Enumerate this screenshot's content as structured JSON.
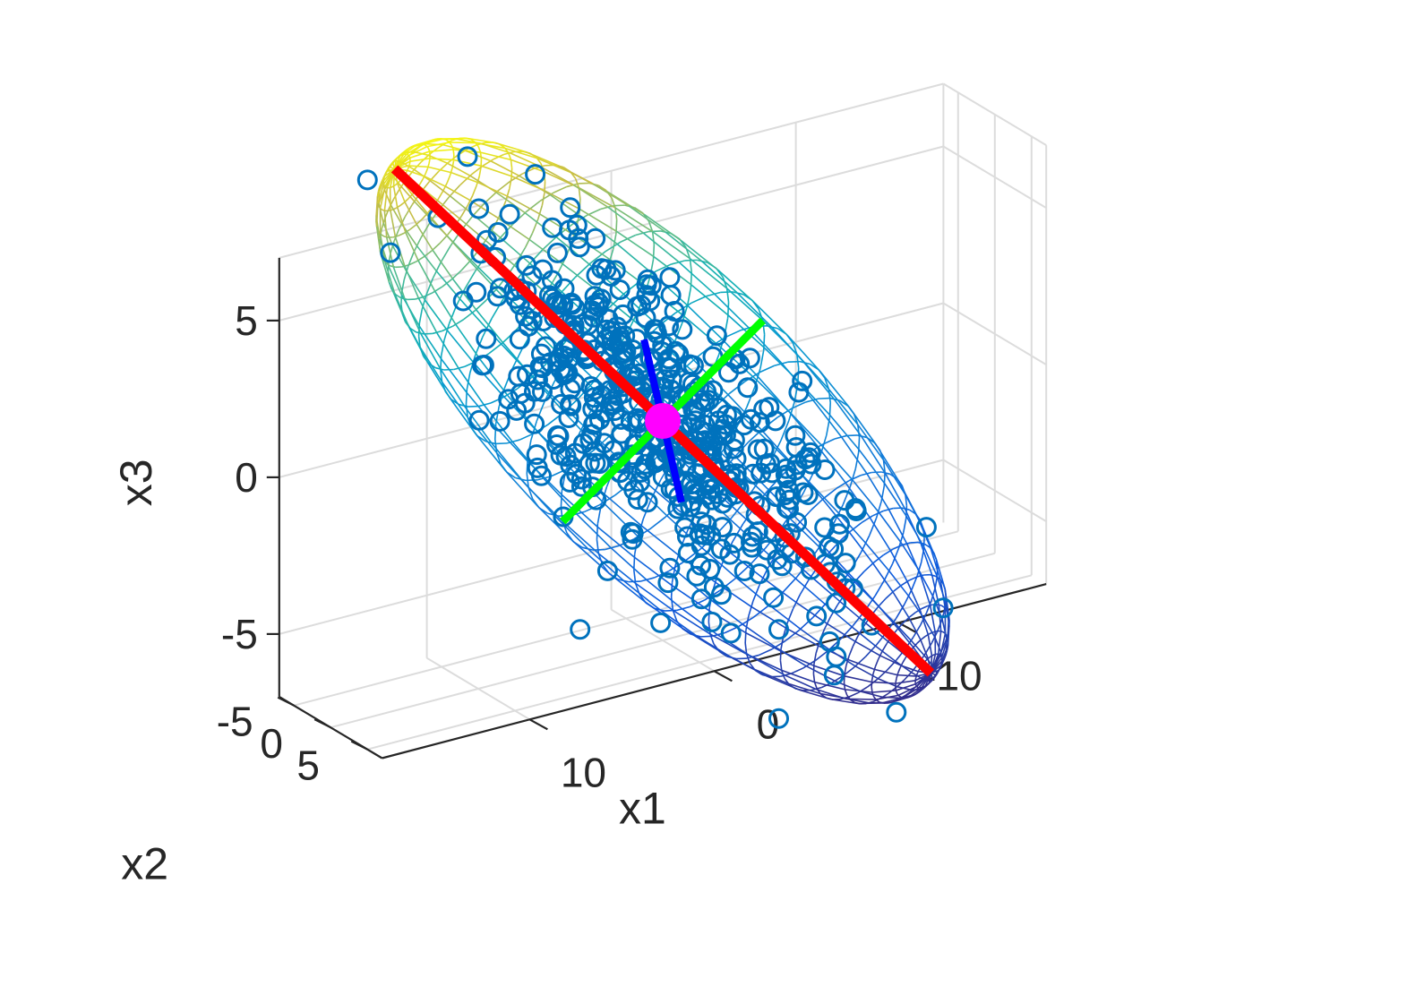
{
  "chart_data": {
    "type": "scatter",
    "projection": "3d",
    "title": "",
    "axes": {
      "x": {
        "label": "x1",
        "ticks": [
          -10,
          0,
          10
        ],
        "tick_labels": [
          "-10",
          "0",
          "10"
        ],
        "range": [
          -18,
          18
        ]
      },
      "y": {
        "label": "x2",
        "ticks": [
          -5,
          0,
          5
        ],
        "tick_labels": [
          "-5",
          "0",
          "5"
        ],
        "range": [
          -7,
          7
        ]
      },
      "z": {
        "label": "x3",
        "ticks": [
          -5,
          0,
          5
        ],
        "tick_labels": [
          "-5",
          "0",
          "5"
        ],
        "range": [
          -7,
          7
        ]
      }
    },
    "grid": true,
    "colors": {
      "points": "#0072bd",
      "principal_axis_1": "#ff0000",
      "principal_axis_2": "#00ff00",
      "principal_axis_3": "#0000ff",
      "center": "#ff00ff",
      "surface_colormap": "parula"
    },
    "ellipsoid": {
      "center": [
        0,
        0,
        0
      ],
      "semi_axes": [
        20,
        7,
        3
      ],
      "principal_axis_1": [
        0.8,
        0.2,
        0.55
      ],
      "principal_axis_2": [
        -0.4,
        0.6,
        0.4
      ],
      "principal_axis_3": [
        0.1,
        -0.6,
        0.8
      ]
    },
    "center_point": [
      0,
      0,
      0
    ],
    "points": {
      "count": 500,
      "distribution": "normal",
      "spread_along_axes": [
        6.5,
        2.4,
        1.0
      ]
    }
  }
}
